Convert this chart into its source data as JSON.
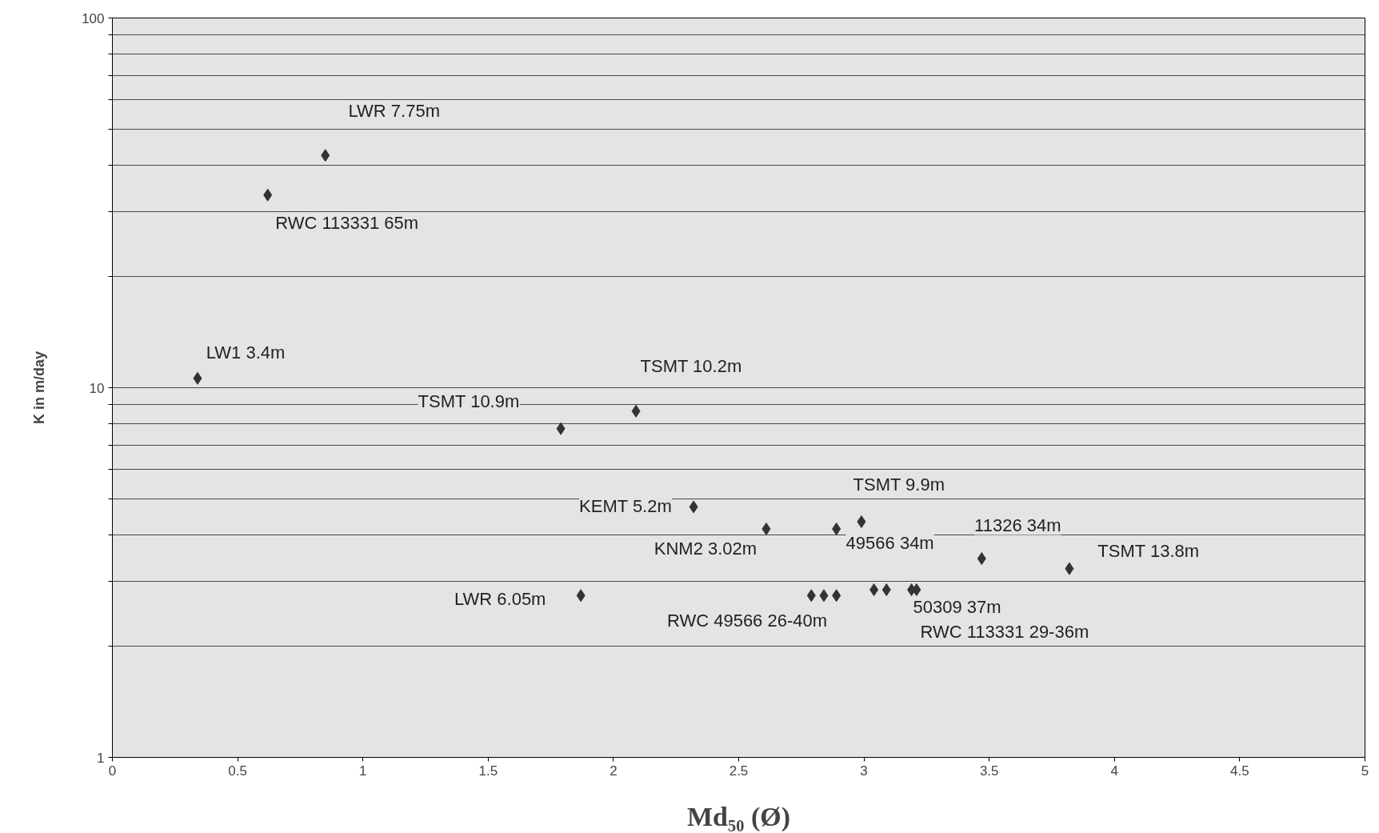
{
  "chart_data": {
    "type": "scatter",
    "xlabel": "Md₅₀ (Ø)",
    "ylabel": "K in m/day",
    "log": "y",
    "grid": "y",
    "marker": "diamond",
    "xlim": [
      0,
      5
    ],
    "xticks": [
      0,
      0.5,
      1,
      1.5,
      2,
      2.5,
      3,
      3.5,
      4,
      4.5,
      5
    ],
    "ylim": [
      1,
      100
    ],
    "yticks": [
      1,
      {
        "value": 2,
        "label": null
      },
      {
        "value": 3,
        "label": null
      },
      {
        "value": 4,
        "label": null
      },
      {
        "value": 5,
        "label": null
      },
      {
        "value": 6,
        "label": null
      },
      {
        "value": 7,
        "label": null
      },
      {
        "value": 8,
        "label": null
      },
      {
        "value": 9,
        "label": null
      },
      10,
      {
        "value": 20,
        "label": null
      },
      {
        "value": 30,
        "label": null
      },
      {
        "value": 40,
        "label": null
      },
      {
        "value": 50,
        "label": null
      },
      {
        "value": 60,
        "label": null
      },
      {
        "value": 70,
        "label": null
      },
      {
        "value": 80,
        "label": null
      },
      {
        "value": 90,
        "label": null
      },
      100
    ],
    "series": [
      {
        "color": "#333333",
        "x": [
          0.34,
          0.62,
          0.85,
          1.79,
          2.09,
          2.32,
          2.61,
          2.89,
          2.99,
          3.47,
          3.82,
          1.87,
          2.79,
          2.84,
          2.89,
          3.04,
          3.09,
          3.19,
          3.21
        ],
        "values": [
          10.6,
          33.2,
          42.5,
          7.75,
          8.64,
          4.76,
          4.15,
          4.15,
          4.34,
          3.45,
          3.24,
          2.74,
          2.74,
          2.74,
          2.74,
          2.84,
          2.84,
          2.84,
          2.84
        ]
      }
    ],
    "annotations": [
      {
        "text": "LWR 7.75m",
        "x": 0.85,
        "y": 42.5
      },
      {
        "text": "RWC 113331 65m",
        "x": 0.62,
        "y": 33.2
      },
      {
        "text": "LW1 3.4m",
        "x": 0.34,
        "y": 10.6
      },
      {
        "text": "TSMT 10.9m",
        "x": 1.79,
        "y": 7.75
      },
      {
        "text": "TSMT 10.2m",
        "x": 2.09,
        "y": 8.64
      },
      {
        "text": "KEMT 5.2m",
        "x": 2.32,
        "y": 4.76
      },
      {
        "text": "KNM2 3.02m",
        "x": 2.61,
        "y": 4.15
      },
      {
        "text": "TSMT 9.9m",
        "x": 2.99,
        "y": 4.34
      },
      {
        "text": "49566 34m",
        "x": 2.89,
        "y": 4.15
      },
      {
        "text": "11326 34m",
        "x": 3.47,
        "y": 3.45
      },
      {
        "text": "TSMT 13.8m",
        "x": 3.82,
        "y": 3.24
      },
      {
        "text": "LWR 6.05m",
        "x": 1.87,
        "y": 2.74
      },
      {
        "text": "RWC 49566 26-40m",
        "x": 2.84,
        "y": 2.74
      },
      {
        "text": "50309 37m",
        "x": 3.19,
        "y": 2.84
      },
      {
        "text": "RWC 113331 29-36m",
        "x": 3.21,
        "y": 2.84
      }
    ]
  }
}
